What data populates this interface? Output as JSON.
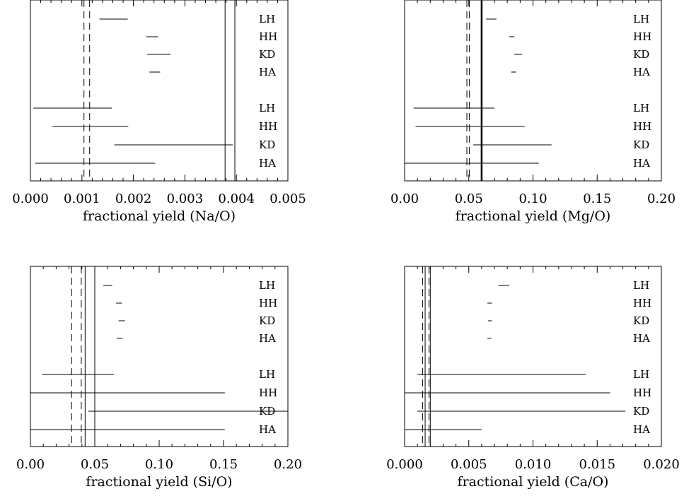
{
  "chart_data": [
    {
      "type": "errorbar",
      "xlabel": "fractional yield (Na/O)",
      "xlim": [
        0,
        0.005
      ],
      "xticks": [
        "0.000",
        "0.001",
        "0.002",
        "0.003",
        "0.004",
        "0.005"
      ],
      "xtick_values": [
        0,
        0.001,
        0.002,
        0.003,
        0.004,
        0.005
      ],
      "vlines": [
        {
          "x": 0.00104,
          "style": "dashed",
          "weight": 1
        },
        {
          "x": 0.00115,
          "style": "dashed",
          "weight": 1
        },
        {
          "x": 0.00378,
          "style": "solid",
          "weight": 1
        },
        {
          "x": 0.00397,
          "style": "solid",
          "weight": 1
        }
      ],
      "rows": [
        {
          "label": "LH",
          "xmin": 0.00134,
          "xmax": 0.00189
        },
        {
          "label": "HH",
          "xmin": 0.00225,
          "xmax": 0.00248
        },
        {
          "label": "KD",
          "xmin": 0.00227,
          "xmax": 0.00272
        },
        {
          "label": "HA",
          "xmin": 0.00231,
          "xmax": 0.00252
        },
        {
          "label": "LH",
          "xmin": 6e-05,
          "xmax": 0.00158
        },
        {
          "label": "HH",
          "xmin": 0.00043,
          "xmax": 0.0019
        },
        {
          "label": "KD",
          "xmin": 0.00163,
          "xmax": 0.00393
        },
        {
          "label": "HA",
          "xmin": 9e-05,
          "xmax": 0.00242
        }
      ]
    },
    {
      "type": "errorbar",
      "xlabel": "fractional yield (Mg/O)",
      "xlim": [
        0,
        0.2
      ],
      "xticks": [
        "0.00",
        "0.05",
        "0.10",
        "0.15",
        "0.20"
      ],
      "xtick_values": [
        0,
        0.05,
        0.1,
        0.15,
        0.2
      ],
      "vlines": [
        {
          "x": 0.0485,
          "style": "dashed",
          "weight": 1
        },
        {
          "x": 0.0505,
          "style": "dashed",
          "weight": 1
        },
        {
          "x": 0.06,
          "style": "solid",
          "weight": 2.5
        }
      ],
      "rows": [
        {
          "label": "LH",
          "xmin": 0.0635,
          "xmax": 0.0715
        },
        {
          "label": "HH",
          "xmin": 0.0815,
          "xmax": 0.0855
        },
        {
          "label": "KD",
          "xmin": 0.0855,
          "xmax": 0.0915
        },
        {
          "label": "HA",
          "xmin": 0.083,
          "xmax": 0.087
        },
        {
          "label": "LH",
          "xmin": 0.007,
          "xmax": 0.07
        },
        {
          "label": "HH",
          "xmin": 0.0085,
          "xmax": 0.0935
        },
        {
          "label": "KD",
          "xmin": 0.0535,
          "xmax": 0.1145
        },
        {
          "label": "HA",
          "xmin": 0.0,
          "xmax": 0.1045
        }
      ]
    },
    {
      "type": "errorbar",
      "xlabel": "fractional yield (Si/O)",
      "xlim": [
        0,
        0.2
      ],
      "xticks": [
        "0.00",
        "0.05",
        "0.10",
        "0.15",
        "0.20"
      ],
      "xtick_values": [
        0,
        0.05,
        0.1,
        0.15,
        0.2
      ],
      "vlines": [
        {
          "x": 0.032,
          "style": "dashed",
          "weight": 1
        },
        {
          "x": 0.0395,
          "style": "dashed",
          "weight": 1
        },
        {
          "x": 0.0425,
          "style": "solid",
          "weight": 1
        },
        {
          "x": 0.05,
          "style": "solid",
          "weight": 1
        }
      ],
      "rows": [
        {
          "label": "LH",
          "xmin": 0.0565,
          "xmax": 0.0635
        },
        {
          "label": "HH",
          "xmin": 0.0665,
          "xmax": 0.071
        },
        {
          "label": "KD",
          "xmin": 0.0685,
          "xmax": 0.0735
        },
        {
          "label": "HA",
          "xmin": 0.067,
          "xmax": 0.0715
        },
        {
          "label": "LH",
          "xmin": 0.009,
          "xmax": 0.065
        },
        {
          "label": "HH",
          "xmin": 0.0,
          "xmax": 0.151
        },
        {
          "label": "KD",
          "xmin": 0.045,
          "xmax": 0.2
        },
        {
          "label": "HA",
          "xmin": 0.0,
          "xmax": 0.151
        }
      ]
    },
    {
      "type": "errorbar",
      "xlabel": "fractional yield (Ca/O)",
      "xlim": [
        0,
        0.02
      ],
      "xticks": [
        "0.000",
        "0.005",
        "0.010",
        "0.015",
        "0.020"
      ],
      "xtick_values": [
        0,
        0.005,
        0.01,
        0.015,
        0.02
      ],
      "vlines": [
        {
          "x": 0.0014,
          "style": "dashed",
          "weight": 1
        },
        {
          "x": 0.0019,
          "style": "dashed",
          "weight": 1
        },
        {
          "x": 0.0016,
          "style": "solid",
          "weight": 1
        },
        {
          "x": 0.002,
          "style": "solid",
          "weight": 1
        }
      ],
      "rows": [
        {
          "label": "LH",
          "xmin": 0.0073,
          "xmax": 0.00815
        },
        {
          "label": "HH",
          "xmin": 0.00645,
          "xmax": 0.0068
        },
        {
          "label": "KD",
          "xmin": 0.0065,
          "xmax": 0.0068
        },
        {
          "label": "HA",
          "xmin": 0.00645,
          "xmax": 0.00675
        },
        {
          "label": "LH",
          "xmin": 0.001,
          "xmax": 0.0141
        },
        {
          "label": "HH",
          "xmin": 0.0,
          "xmax": 0.016
        },
        {
          "label": "KD",
          "xmin": 0.001,
          "xmax": 0.0172
        },
        {
          "label": "HA",
          "xmin": 0.0,
          "xmax": 0.006
        }
      ]
    }
  ]
}
